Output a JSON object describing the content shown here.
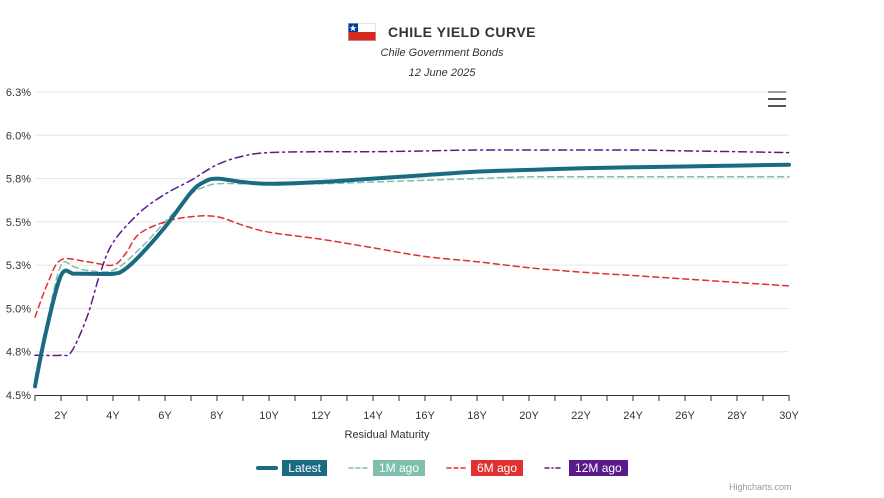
{
  "header": {
    "title": "CHILE YIELD CURVE",
    "subtitle": "Chile Government Bonds",
    "date": "12 June 2025",
    "flag_icon": "chile-flag-icon",
    "menu_icon": "hamburger-menu-icon"
  },
  "credits": "Highcharts.com",
  "chart_data": {
    "type": "line",
    "title": "CHILE YIELD CURVE",
    "subtitle": "Chile Government Bonds",
    "date": "12 June 2025",
    "xlabel": "Residual Maturity",
    "ylabel": "",
    "x_ticks": [
      "2Y",
      "4Y",
      "6Y",
      "8Y",
      "10Y",
      "12Y",
      "14Y",
      "16Y",
      "18Y",
      "20Y",
      "22Y",
      "24Y",
      "26Y",
      "28Y",
      "30Y"
    ],
    "x_tick_values": [
      2,
      4,
      6,
      8,
      10,
      12,
      14,
      16,
      18,
      20,
      22,
      24,
      26,
      28,
      30
    ],
    "y_ticks": [
      "4.5%",
      "4.8%",
      "5.0%",
      "5.3%",
      "5.5%",
      "5.8%",
      "6.0%",
      "6.3%"
    ],
    "y_tick_values": [
      4.5,
      4.75,
      5.0,
      5.25,
      5.5,
      5.75,
      6.0,
      6.25
    ],
    "xlim": [
      1,
      30
    ],
    "ylim": [
      4.5,
      6.25
    ],
    "grid": true,
    "legend_position": "bottom-center",
    "series": [
      {
        "name": "Latest",
        "color": "#1a6a82",
        "style": "solid",
        "points": [
          [
            1,
            4.55
          ],
          [
            1.4,
            4.85
          ],
          [
            2,
            5.19
          ],
          [
            2.5,
            5.2
          ],
          [
            3,
            5.2
          ],
          [
            4,
            5.2
          ],
          [
            4.4,
            5.22
          ],
          [
            5,
            5.3
          ],
          [
            6,
            5.47
          ],
          [
            7,
            5.67
          ],
          [
            7.5,
            5.73
          ],
          [
            8,
            5.75
          ],
          [
            9,
            5.73
          ],
          [
            10,
            5.72
          ],
          [
            12,
            5.73
          ],
          [
            14,
            5.75
          ],
          [
            16,
            5.77
          ],
          [
            18,
            5.79
          ],
          [
            20,
            5.8
          ],
          [
            22,
            5.81
          ],
          [
            24,
            5.815
          ],
          [
            26,
            5.82
          ],
          [
            28,
            5.825
          ],
          [
            30,
            5.83
          ]
        ]
      },
      {
        "name": "1M ago",
        "color": "#7fbfad",
        "style": "dash",
        "points": [
          [
            1,
            4.6
          ],
          [
            1.5,
            4.95
          ],
          [
            2,
            5.25
          ],
          [
            2.5,
            5.24
          ],
          [
            3,
            5.22
          ],
          [
            4,
            5.22
          ],
          [
            5,
            5.34
          ],
          [
            6,
            5.5
          ],
          [
            7,
            5.66
          ],
          [
            7.5,
            5.7
          ],
          [
            8,
            5.72
          ],
          [
            9,
            5.72
          ],
          [
            10,
            5.72
          ],
          [
            12,
            5.72
          ],
          [
            14,
            5.73
          ],
          [
            16,
            5.74
          ],
          [
            18,
            5.75
          ],
          [
            20,
            5.76
          ],
          [
            22,
            5.76
          ],
          [
            24,
            5.76
          ],
          [
            26,
            5.76
          ],
          [
            28,
            5.76
          ],
          [
            30,
            5.76
          ]
        ]
      },
      {
        "name": "6M ago",
        "color": "#e03030",
        "style": "dash",
        "points": [
          [
            1,
            4.95
          ],
          [
            1.5,
            5.15
          ],
          [
            2,
            5.28
          ],
          [
            3,
            5.27
          ],
          [
            4,
            5.25
          ],
          [
            4.5,
            5.32
          ],
          [
            5,
            5.43
          ],
          [
            6,
            5.5
          ],
          [
            7,
            5.53
          ],
          [
            8,
            5.53
          ],
          [
            9,
            5.48
          ],
          [
            10,
            5.44
          ],
          [
            12,
            5.4
          ],
          [
            14,
            5.35
          ],
          [
            16,
            5.3
          ],
          [
            18,
            5.27
          ],
          [
            20,
            5.235
          ],
          [
            22,
            5.21
          ],
          [
            24,
            5.19
          ],
          [
            26,
            5.17
          ],
          [
            28,
            5.15
          ],
          [
            30,
            5.13
          ]
        ]
      },
      {
        "name": "12M ago",
        "color": "#5a1a8c",
        "style": "dashdot",
        "points": [
          [
            1,
            4.73
          ],
          [
            2,
            4.73
          ],
          [
            2.4,
            4.75
          ],
          [
            3,
            4.95
          ],
          [
            3.5,
            5.2
          ],
          [
            4,
            5.38
          ],
          [
            5,
            5.55
          ],
          [
            6,
            5.66
          ],
          [
            7,
            5.74
          ],
          [
            8,
            5.83
          ],
          [
            9,
            5.88
          ],
          [
            10,
            5.9
          ],
          [
            12,
            5.905
          ],
          [
            14,
            5.905
          ],
          [
            16,
            5.91
          ],
          [
            18,
            5.915
          ],
          [
            20,
            5.915
          ],
          [
            22,
            5.915
          ],
          [
            24,
            5.915
          ],
          [
            26,
            5.91
          ],
          [
            28,
            5.905
          ],
          [
            30,
            5.9
          ]
        ]
      }
    ]
  }
}
